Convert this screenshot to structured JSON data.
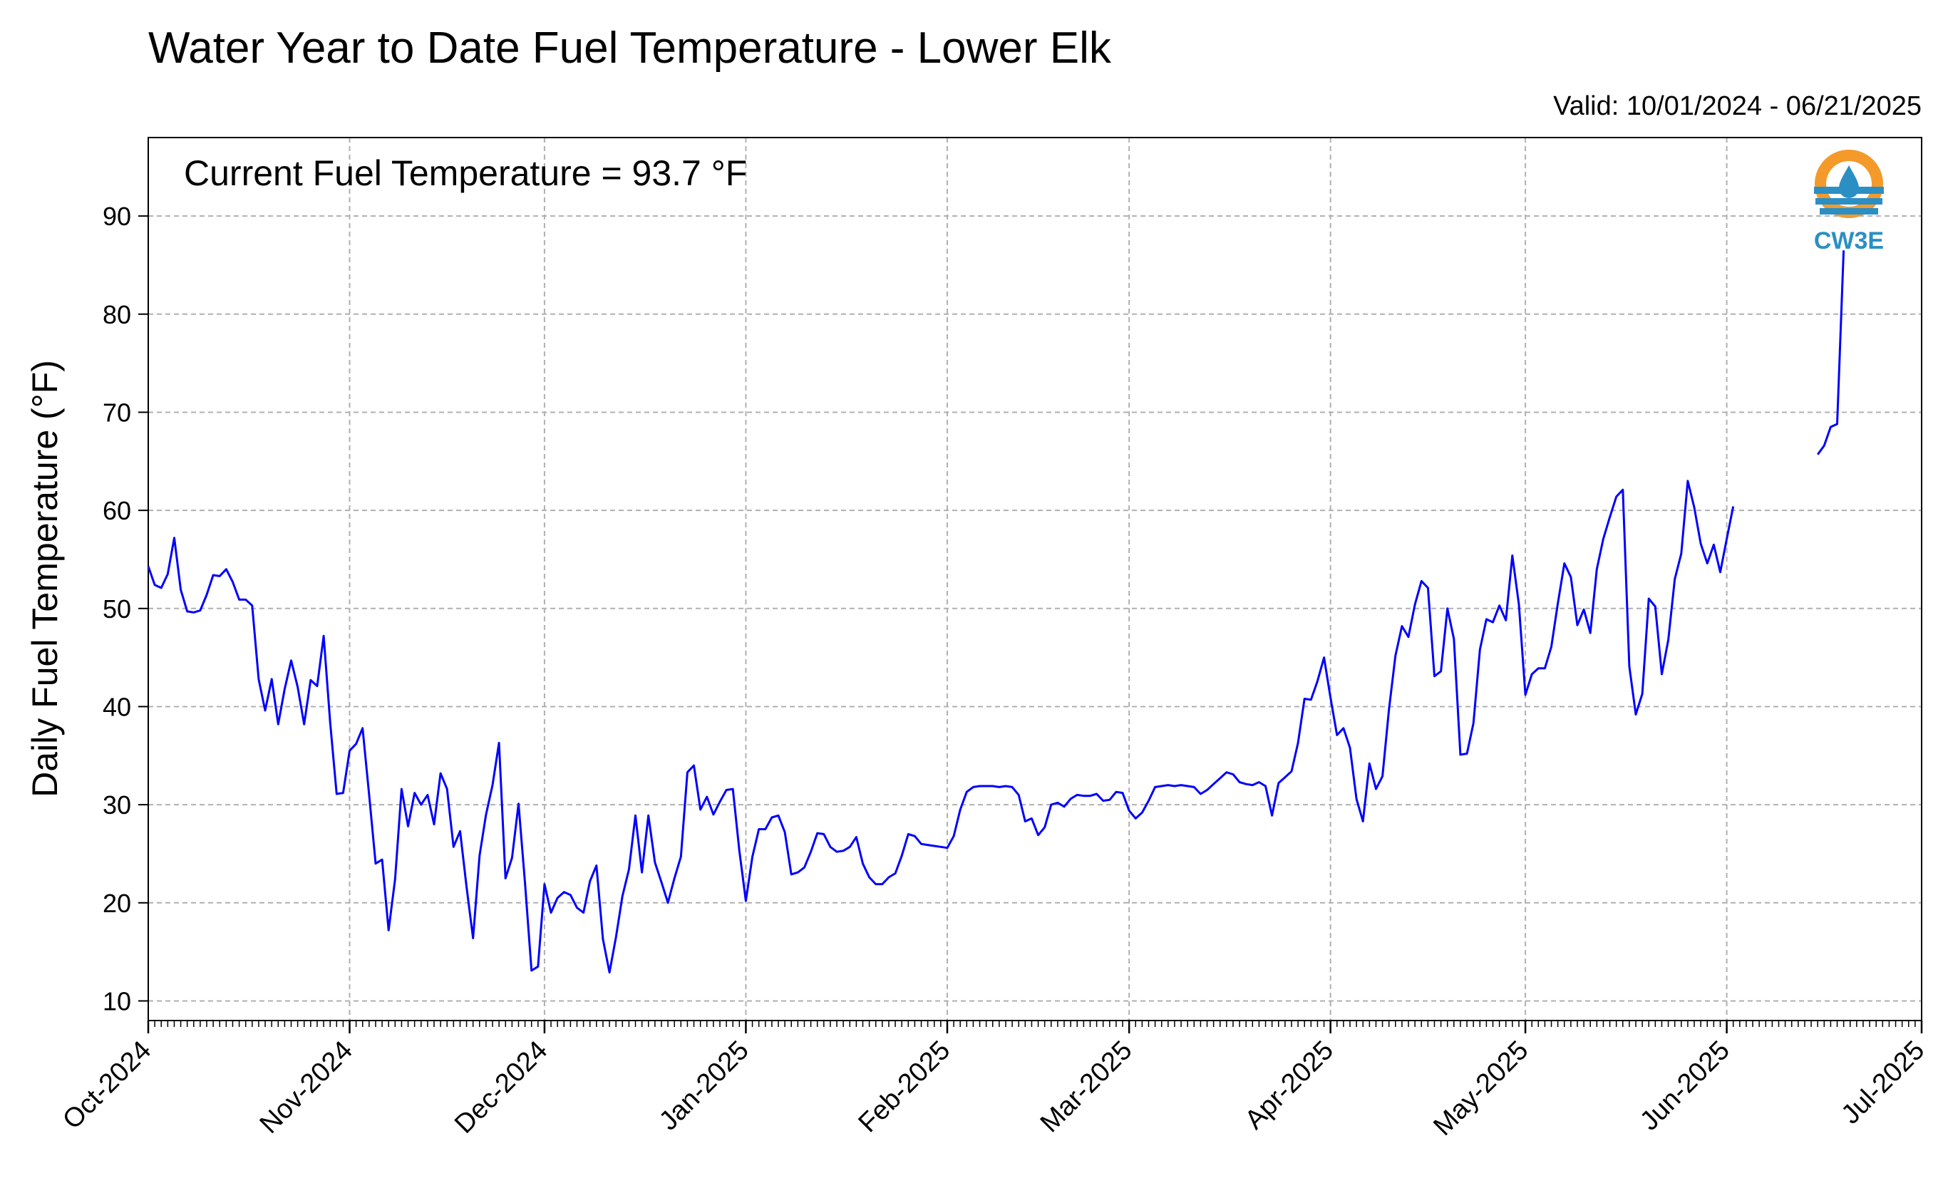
{
  "chart_data": {
    "type": "line",
    "title": "Water Year to Date Fuel Temperature - Lower Elk",
    "subtitle": "Valid: 10/01/2024 - 06/21/2025",
    "annotation": "Current Fuel Temperature = 93.7 °F",
    "ylabel": "Daily Fuel Temperature (°F)",
    "xlabel": "",
    "xlim": [
      "2024-10-01",
      "2025-07-01"
    ],
    "ylim": [
      8,
      98
    ],
    "grid": true,
    "x_tick_labels": [
      "Oct-2024",
      "Nov-2024",
      "Dec-2024",
      "Jan-2025",
      "Feb-2025",
      "Mar-2025",
      "Apr-2025",
      "May-2025",
      "Jun-2025",
      "Jul-2025"
    ],
    "x_ticks": [
      "2024-10-01",
      "2024-11-01",
      "2024-12-01",
      "2025-01-01",
      "2025-02-01",
      "2025-03-01",
      "2025-04-01",
      "2025-05-01",
      "2025-06-01",
      "2025-07-01"
    ],
    "y_ticks": [
      10,
      20,
      30,
      40,
      50,
      60,
      70,
      80,
      90
    ],
    "series": [
      {
        "color": "#0000ff",
        "segments": [
          {
            "start": "2024-10-01",
            "values": [
              54.3,
              52.4,
              52.1,
              53.5,
              57.2,
              51.9,
              49.7,
              49.6,
              49.8,
              51.4,
              53.4,
              53.3,
              54.0,
              52.7,
              50.9,
              50.9,
              50.3,
              42.8,
              39.6,
              42.8,
              38.2,
              41.8,
              44.7,
              42.0,
              38.2,
              42.7,
              42.1,
              47.2,
              38.4,
              31.1,
              31.2,
              35.5,
              36.2,
              37.8,
              31.0,
              24.0,
              24.4,
              17.2,
              22.4,
              31.6,
              27.8,
              31.2,
              30.0,
              31.0,
              28.0,
              33.2,
              31.6,
              25.7,
              27.3,
              21.6,
              16.4,
              24.8,
              29.0,
              32.0,
              36.3,
              22.5,
              24.6,
              30.1,
              22.0,
              13.1,
              13.5,
              21.9,
              19.0,
              20.5,
              21.1,
              20.8,
              19.5,
              19.0,
              22.2,
              23.8,
              16.3,
              12.9,
              16.5,
              20.7,
              23.4,
              28.9,
              23.1,
              28.9,
              24.1,
              22.1,
              20.0,
              22.5,
              24.7,
              33.3,
              34.0,
              29.5,
              30.8,
              29.0,
              30.3,
              31.5,
              31.6,
              25.3,
              20.2,
              24.7,
              27.5,
              27.5,
              28.7,
              28.9,
              27.2,
              22.9,
              23.1,
              23.6,
              25.2,
              27.1,
              27.0,
              25.7,
              25.2,
              25.3,
              25.7,
              26.7,
              24.0,
              22.6,
              21.9,
              21.9,
              22.6,
              23.0,
              24.8,
              27.0,
              26.8,
              26.0,
              25.9,
              25.8,
              25.7,
              25.6,
              26.8,
              29.5,
              31.3,
              31.8,
              31.9,
              31.9,
              31.9,
              31.8,
              31.9,
              31.8,
              31.0,
              28.3,
              28.6,
              26.9,
              27.7,
              30.0,
              30.2,
              29.8,
              30.6,
              31.0,
              30.9,
              30.9,
              31.1,
              30.4,
              30.5,
              31.3,
              31.2,
              29.4,
              28.6,
              29.2,
              30.4,
              31.8,
              31.9,
              32.0,
              31.9,
              32.0,
              31.9,
              31.8,
              31.1,
              31.5,
              32.1,
              32.7,
              33.3,
              33.1,
              32.3,
              32.1,
              32.0,
              32.3,
              31.9,
              28.9,
              32.2,
              32.8,
              33.4,
              36.3,
              40.8,
              40.7,
              42.6,
              45.0,
              40.9,
              37.1,
              37.8,
              35.8,
              30.6,
              28.3,
              34.2,
              31.6,
              32.9,
              39.7,
              45.2,
              48.2,
              47.1,
              50.4,
              52.8,
              52.1,
              43.1,
              43.6,
              50.0,
              46.9,
              35.1,
              35.2,
              38.3,
              45.8,
              48.9,
              48.6,
              50.3,
              48.8,
              55.4,
              50.4,
              41.2,
              43.3,
              43.9,
              43.9,
              46.1,
              50.5,
              54.6,
              53.2,
              48.3,
              49.9,
              47.5,
              54.0,
              57.1,
              59.3,
              61.4,
              62.1,
              44.1,
              39.2,
              41.3,
              51.0,
              50.2,
              43.3,
              46.8,
              53.0,
              55.6,
              63.0,
              60.3,
              56.6,
              54.6,
              56.5,
              53.7,
              57.1,
              60.4
            ]
          },
          {
            "start": "2025-06-15",
            "values": [
              65.7,
              66.6,
              68.5,
              68.8,
              86.5
            ]
          }
        ]
      }
    ]
  },
  "logo": {
    "text": "CW3E",
    "colors": {
      "orange": "#f39a2b",
      "blue": "#2b8fc4"
    }
  },
  "colors": {
    "line": "#0000ff",
    "grid": "#b0b0b0"
  }
}
